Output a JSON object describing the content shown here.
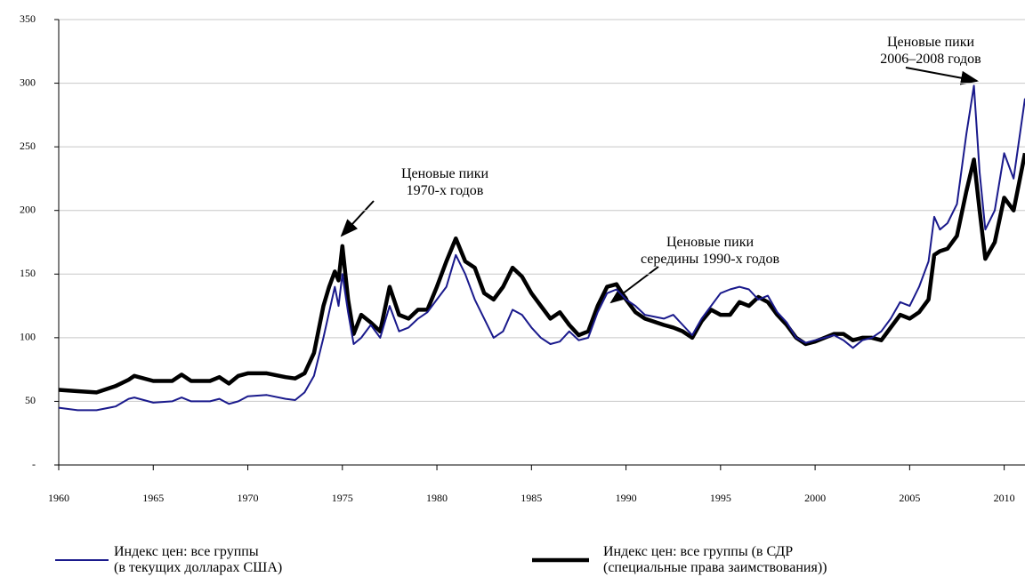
{
  "chart_data": {
    "type": "line",
    "annotations": [
      {
        "text": "Ценовые пики\n1970-х годов"
      },
      {
        "text": "Ценовые пики\nсередины 1990-х годов"
      },
      {
        "text": "Ценовые пики\n2006–2008 годов"
      }
    ],
    "x": [
      1960,
      1961,
      1962,
      1963,
      1963.7,
      1964,
      1965,
      1966,
      1966.5,
      1967,
      1968,
      1968.5,
      1969,
      1969.5,
      1970,
      1971,
      1972,
      1972.5,
      1973,
      1973.5,
      1974,
      1974.3,
      1974.6,
      1974.8,
      1975,
      1975.3,
      1975.6,
      1976,
      1976.5,
      1977,
      1977.5,
      1978,
      1978.5,
      1979,
      1979.5,
      1980,
      1980.5,
      1981,
      1981.5,
      1982,
      1982.5,
      1983,
      1983.5,
      1984,
      1984.5,
      1985,
      1985.5,
      1986,
      1986.5,
      1987,
      1987.5,
      1988,
      1988.5,
      1989,
      1989.5,
      1990,
      1990.5,
      1991,
      1992,
      1992.5,
      1993,
      1993.5,
      1994,
      1994.5,
      1995,
      1995.5,
      1996,
      1996.5,
      1997,
      1997.5,
      1998,
      1998.5,
      1999,
      1999.5,
      2000,
      2000.5,
      2001,
      2001.5,
      2002,
      2002.5,
      2003,
      2003.5,
      2004,
      2004.5,
      2005,
      2005.5,
      2006,
      2006.3,
      2006.6,
      2007,
      2007.5,
      2008,
      2008.4,
      2008.7,
      2009,
      2009.5,
      2010,
      2010.5,
      2011.1
    ],
    "series": [
      {
        "name": "Индекс цен: все группы\n(в текущих долларах США)",
        "color": "#1a1a8c",
        "values": [
          45,
          43,
          43,
          46,
          52,
          53,
          49,
          50,
          53,
          50,
          50,
          52,
          48,
          50,
          54,
          55,
          52,
          51,
          57,
          70,
          100,
          120,
          140,
          125,
          150,
          120,
          95,
          100,
          110,
          100,
          125,
          105,
          108,
          115,
          120,
          130,
          140,
          165,
          150,
          130,
          115,
          100,
          105,
          122,
          118,
          108,
          100,
          95,
          97,
          105,
          98,
          100,
          120,
          135,
          138,
          130,
          125,
          118,
          115,
          118,
          110,
          102,
          115,
          125,
          135,
          138,
          140,
          138,
          130,
          133,
          120,
          112,
          100,
          96,
          98,
          100,
          102,
          98,
          92,
          98,
          100,
          105,
          115,
          128,
          125,
          140,
          160,
          195,
          185,
          190,
          205,
          260,
          298,
          230,
          185,
          200,
          245,
          225,
          288
        ]
      },
      {
        "name": "Индекс цен: все группы (в СДР\n(специальные права заимствования))",
        "color": "#000000",
        "values": [
          59,
          58,
          57,
          62,
          67,
          70,
          66,
          66,
          71,
          66,
          66,
          69,
          64,
          70,
          72,
          72,
          69,
          68,
          72,
          88,
          125,
          140,
          152,
          145,
          172,
          130,
          103,
          118,
          112,
          105,
          140,
          118,
          115,
          122,
          122,
          140,
          160,
          178,
          160,
          155,
          135,
          130,
          140,
          155,
          148,
          135,
          125,
          115,
          120,
          110,
          102,
          105,
          125,
          140,
          142,
          130,
          120,
          115,
          110,
          108,
          105,
          100,
          113,
          122,
          118,
          118,
          128,
          125,
          132,
          128,
          118,
          110,
          100,
          95,
          97,
          100,
          103,
          103,
          98,
          100,
          100,
          98,
          108,
          118,
          115,
          120,
          130,
          165,
          168,
          170,
          180,
          215,
          240,
          200,
          162,
          175,
          210,
          200,
          245
        ]
      }
    ],
    "xlim": [
      1960,
      2011.1
    ],
    "xticks": [
      1960,
      1965,
      1970,
      1975,
      1980,
      1985,
      1990,
      1995,
      2000,
      2005,
      2010
    ],
    "ylim": [
      0,
      350
    ],
    "yticks": [
      {
        "value": 0,
        "label": "-"
      },
      50,
      100,
      150,
      200,
      250,
      300,
      350
    ],
    "grid": true
  }
}
